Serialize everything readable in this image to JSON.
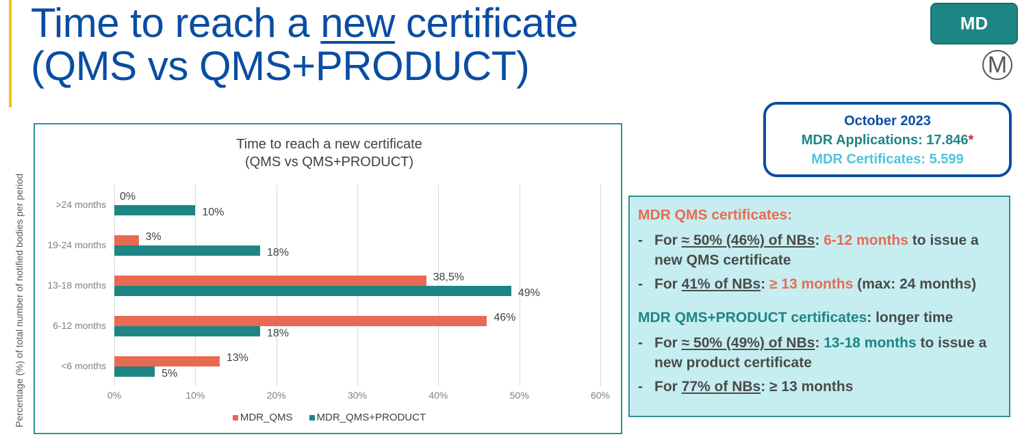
{
  "slide": {
    "title_part1": "Time to reach a ",
    "title_underlined": "new",
    "title_part2": " certificate",
    "title_line2": "(QMS vs QMS+PRODUCT)",
    "badge": "MD",
    "m_icon": "M",
    "accent_color": "#f5c200",
    "title_color": "#0a4da2"
  },
  "stats": {
    "date": "October 2023",
    "applications_label": "MDR Applications: 17.846",
    "applications_star": "*",
    "certificates_label": "MDR Certificates: 5.599"
  },
  "info": {
    "qms_heading": "MDR QMS certificates:",
    "qms_items": [
      {
        "pre": "For ",
        "u": "≈ 50% (46%) of NBs",
        "colon": ": ",
        "hl": "6-12 months",
        "post": " to issue a new QMS certificate"
      },
      {
        "pre": "For ",
        "u": "41% of NBs",
        "colon": ": ",
        "hl": "≥ 13 months",
        "post": " (max: 24 months)"
      }
    ],
    "prod_heading": "MDR QMS+PRODUCT certificates",
    "prod_heading_suffix": ": longer time",
    "prod_items": [
      {
        "pre": "For ",
        "u": "≈ 50% (49%) of NBs",
        "colon": ": ",
        "hl": "13-18 months",
        "post": " to issue a new product certificate"
      },
      {
        "pre": "For ",
        "u": "77% of NBs",
        "colon": ": ≥ 13 months",
        "hl": "",
        "post": ""
      }
    ],
    "dash": "-"
  },
  "chart_data": {
    "type": "bar",
    "orientation": "horizontal",
    "title": "Time to reach a new certificate",
    "subtitle": "(QMS vs QMS+PRODUCT)",
    "xlabel": "",
    "ylabel": "Percentage (%) of total number of notified bodies per period",
    "categories": [
      ">24 months",
      "19-24 months",
      "13-18 months",
      "6-12 months",
      "<6 months"
    ],
    "series": [
      {
        "name": "MDR_QMS",
        "color": "#e96a53",
        "values": [
          0,
          3,
          38.5,
          46,
          13
        ],
        "labels": [
          "0%",
          "3%",
          "38,5%",
          "46%",
          "13%"
        ]
      },
      {
        "name": "MDR_QMS+PRODUCT",
        "color": "#1e8585",
        "values": [
          10,
          18,
          49,
          18,
          5
        ],
        "labels": [
          "10%",
          "18%",
          "49%",
          "18%",
          "5%"
        ]
      }
    ],
    "xlim": [
      0,
      60
    ],
    "x_ticks": [
      "0%",
      "10%",
      "20%",
      "30%",
      "40%",
      "50%",
      "60%"
    ],
    "grid": true,
    "legend_position": "bottom"
  }
}
